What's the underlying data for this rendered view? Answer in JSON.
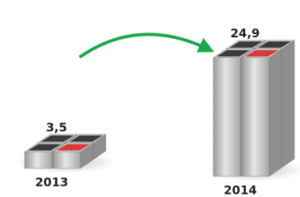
{
  "chart_data": {
    "type": "bar3d",
    "categories": [
      "2013",
      "2014"
    ],
    "values": [
      3.5,
      24.9
    ],
    "value_labels": [
      "3,5",
      "24,9"
    ],
    "color": "#d8393a"
  }
}
